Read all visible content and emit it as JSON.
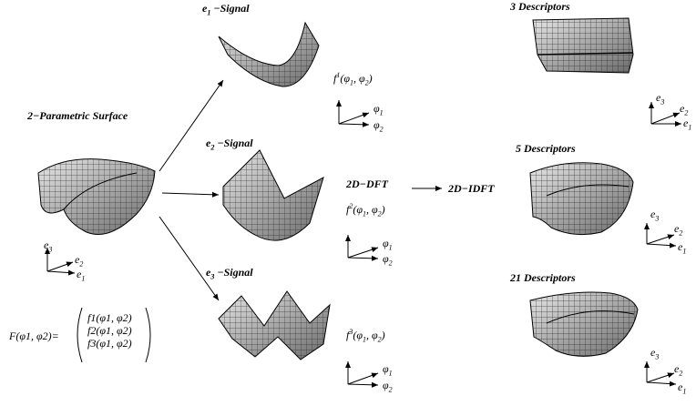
{
  "labels": {
    "parametric_surface": "2−Parametric Surface",
    "e1_signal": "−Signal",
    "e2_signal": "−Signal",
    "e3_signal": "−Signal",
    "dft": "2D−DFT",
    "idft": "2D−IDFT",
    "desc3": "3 Descriptors",
    "desc5": "5 Descriptors",
    "desc21": "21 Descriptors"
  },
  "signal_funcs": {
    "f1": "f",
    "f2": "f",
    "f3": "f",
    "phi1": "φ",
    "phi2": "φ"
  },
  "axes": {
    "e1": "e",
    "e2": "e",
    "e3": "e",
    "phi": "φ"
  },
  "formula": {
    "lhs": "F(φ1, φ2)=",
    "row1": "f1(φ1, φ2)",
    "row2": "f2(φ1, φ2)",
    "row3": "f3(φ1, φ2)"
  }
}
